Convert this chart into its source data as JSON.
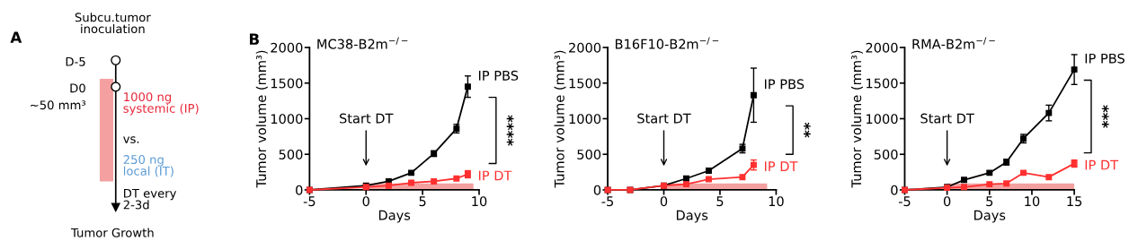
{
  "chart_data": [
    {
      "type": "other",
      "annotations": [
        "A",
        "Subcu.tumor\ninoculation",
        "D-5",
        "D0",
        "~50 mm³",
        "1000 ng\nsystemic (IP)",
        "vs.",
        "250 ng\nlocal (IT)",
        "DT every\n2-3d",
        "Tumor Growth"
      ]
    },
    {
      "type": "line",
      "title": "MC38-B2m$^{−/−}$",
      "xlabel": "Days",
      "ylabel": "Tumor volume (mm³)",
      "xlim": [
        -5,
        10
      ],
      "xticks": [
        -5,
        0,
        5,
        10
      ],
      "ylim": [
        0,
        2000
      ],
      "yticks": [
        0,
        500,
        1000,
        1500,
        2000
      ],
      "marker": "square",
      "legend": false,
      "grid": false,
      "annotations": [
        "B",
        "Start DT",
        "****"
      ],
      "bands": [
        {
          "axis": "x",
          "from": 0,
          "to": 9.5,
          "color": "#f4a0a0"
        }
      ],
      "series": [
        {
          "name": "IP PBS",
          "color": "#000000",
          "x": [
            -5,
            0,
            2,
            4,
            6,
            8,
            9
          ],
          "values": [
            0,
            60,
            120,
            240,
            510,
            860,
            1450
          ],
          "errors": [
            null,
            null,
            null,
            null,
            40,
            60,
            150
          ]
        },
        {
          "name": "IP DT",
          "color": "#ff3030",
          "x": [
            -5,
            0,
            2,
            4,
            6,
            8,
            9
          ],
          "values": [
            0,
            40,
            60,
            100,
            120,
            160,
            220
          ],
          "errors": [
            null,
            null,
            null,
            null,
            null,
            null,
            50
          ]
        }
      ]
    },
    {
      "type": "line",
      "title": "B16F10-B2m$^{−/−}$",
      "xlabel": "Days",
      "ylabel": "Tumor volume (mm³)",
      "xlim": [
        -5,
        10
      ],
      "xticks": [
        -5,
        0,
        5,
        10
      ],
      "ylim": [
        0,
        2000
      ],
      "yticks": [
        0,
        500,
        1000,
        1500,
        2000
      ],
      "marker": "square",
      "legend": false,
      "grid": false,
      "annotations": [
        "Start DT",
        "**"
      ],
      "bands": [
        {
          "axis": "x",
          "from": 0,
          "to": 9.2,
          "color": "#f4a0a0"
        }
      ],
      "series": [
        {
          "name": "IP PBS",
          "color": "#000000",
          "x": [
            -5,
            -3,
            0,
            2,
            4,
            7,
            8
          ],
          "values": [
            0,
            0,
            60,
            160,
            270,
            580,
            1330
          ],
          "errors": [
            null,
            null,
            null,
            null,
            null,
            60,
            380
          ]
        },
        {
          "name": "IP DT",
          "color": "#ff3030",
          "x": [
            -5,
            -3,
            0,
            2,
            4,
            7,
            8
          ],
          "values": [
            0,
            0,
            60,
            80,
            150,
            180,
            350
          ],
          "errors": [
            null,
            null,
            null,
            null,
            null,
            null,
            70
          ]
        }
      ]
    },
    {
      "type": "line",
      "title": "RMA-B2m$^{−/−}$",
      "xlabel": "Days",
      "ylabel": "Tumor volume (mm³)",
      "xlim": [
        -5,
        15
      ],
      "xticks": [
        -5,
        0,
        5,
        10,
        15
      ],
      "ylim": [
        0,
        2000
      ],
      "yticks": [
        0,
        500,
        1000,
        1500,
        2000
      ],
      "marker": "square",
      "legend": false,
      "grid": false,
      "annotations": [
        "Start DT",
        "***"
      ],
      "bands": [
        {
          "axis": "x",
          "from": 0,
          "to": 15,
          "color": "#f4a0a0"
        }
      ],
      "series": [
        {
          "name": "IP PBS",
          "color": "#000000",
          "x": [
            -5,
            0,
            2,
            5,
            7,
            9,
            12,
            15
          ],
          "values": [
            0,
            40,
            140,
            240,
            390,
            720,
            1080,
            1690
          ],
          "errors": [
            null,
            null,
            null,
            null,
            40,
            60,
            110,
            210
          ]
        },
        {
          "name": "IP DT",
          "color": "#ff3030",
          "x": [
            -5,
            0,
            2,
            5,
            7,
            9,
            12,
            15
          ],
          "values": [
            0,
            30,
            40,
            80,
            90,
            240,
            180,
            370
          ],
          "errors": [
            null,
            null,
            null,
            null,
            null,
            null,
            null,
            50
          ]
        }
      ]
    }
  ]
}
